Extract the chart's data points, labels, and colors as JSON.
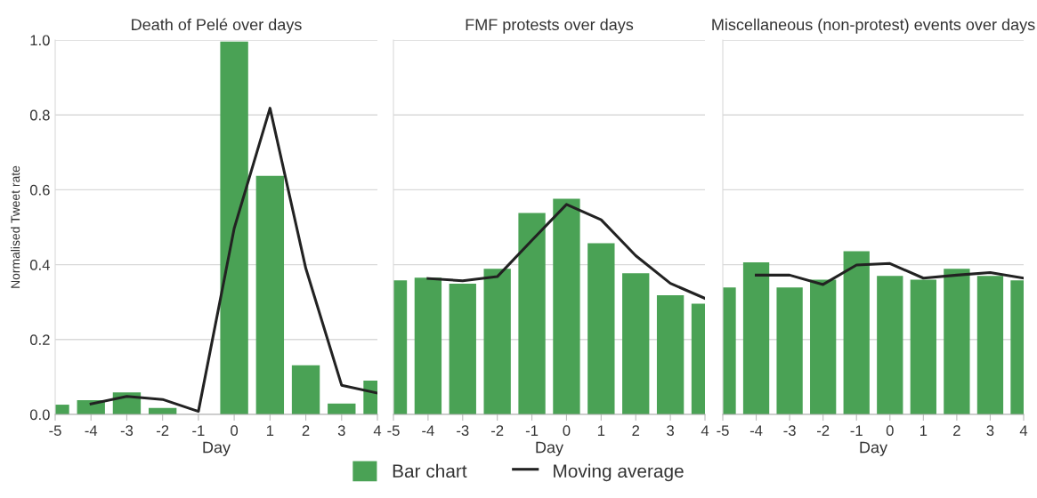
{
  "chart_data": [
    {
      "type": "bar",
      "title": "Death of Pelé over days",
      "xlabel": "Day",
      "ylabel": "Normalised Tweet rate",
      "x": [
        -5,
        -4,
        -3,
        -2,
        -1,
        0,
        1,
        2,
        3,
        4
      ],
      "xlim": [
        -5,
        4
      ],
      "xticks": [
        -5,
        -4,
        -3,
        -2,
        -1,
        0,
        1,
        2,
        3,
        4
      ],
      "ylim": [
        0,
        1.0
      ],
      "yticks": [
        {
          "value": 0,
          "label": "0.0"
        },
        0.2,
        0.4,
        0.6,
        0.8,
        {
          "value": 1,
          "label": "1.0"
        }
      ],
      "grid": "y",
      "legend": "bottom",
      "series": [
        {
          "name": "Bar chart",
          "color": "#4aa255",
          "values": [
            0.026,
            0.038,
            0.059,
            0.017,
            null,
            0.996,
            0.637,
            0.131,
            0.029,
            0.09
          ]
        },
        {
          "name": "Moving average",
          "type": "line",
          "color": "#222222",
          "x": [
            -4,
            -3,
            -2,
            -1,
            0,
            1,
            2,
            3,
            4
          ],
          "values": [
            0.028,
            0.048,
            0.04,
            0.008,
            0.497,
            0.818,
            0.39,
            0.078,
            0.057
          ]
        }
      ]
    },
    {
      "type": "bar",
      "title": "FMF protests over days",
      "xlabel": "Day",
      "x": [
        -5,
        -4,
        -3,
        -2,
        -1,
        0,
        1,
        2,
        3,
        4
      ],
      "xlim": [
        -5,
        4
      ],
      "xticks": [
        -5,
        -4,
        -3,
        -2,
        -1,
        0,
        1,
        2,
        3,
        4
      ],
      "ylim": [
        0,
        1.0
      ],
      "yticks": [
        0,
        0.2,
        0.4,
        0.6,
        0.8,
        1
      ],
      "grid": "y",
      "tick_labels": "x",
      "series": [
        {
          "color": "#4aa255",
          "values": [
            0.358,
            0.365,
            0.349,
            0.389,
            0.538,
            0.576,
            0.457,
            0.377,
            0.318,
            0.296
          ]
        },
        {
          "type": "line",
          "color": "#222222",
          "x": [
            -4,
            -3,
            -2,
            -1,
            0,
            1,
            2,
            3,
            4
          ],
          "values": [
            0.363,
            0.357,
            0.368,
            0.465,
            0.561,
            0.52,
            0.424,
            0.35,
            0.31
          ]
        }
      ]
    },
    {
      "type": "bar",
      "title": "Miscellaneous (non-protest) events over days",
      "xlabel": "Day",
      "x": [
        -5,
        -4,
        -3,
        -2,
        -1,
        0,
        1,
        2,
        3,
        4
      ],
      "xlim": [
        -5,
        4
      ],
      "xticks": [
        -5,
        -4,
        -3,
        -2,
        -1,
        0,
        1,
        2,
        3,
        4
      ],
      "ylim": [
        0,
        1.0
      ],
      "yticks": [
        0,
        0.2,
        0.4,
        0.6,
        0.8,
        1
      ],
      "grid": "y",
      "tick_labels": "x",
      "series": [
        {
          "color": "#4aa255",
          "values": [
            0.339,
            0.406,
            0.339,
            0.36,
            0.436,
            0.37,
            0.36,
            0.389,
            0.37,
            0.358
          ]
        },
        {
          "type": "line",
          "color": "#222222",
          "x": [
            -4,
            -3,
            -2,
            -1,
            0,
            1,
            2,
            3,
            4
          ],
          "values": [
            0.372,
            0.372,
            0.347,
            0.399,
            0.403,
            0.364,
            0.372,
            0.379,
            0.364
          ]
        }
      ]
    }
  ]
}
